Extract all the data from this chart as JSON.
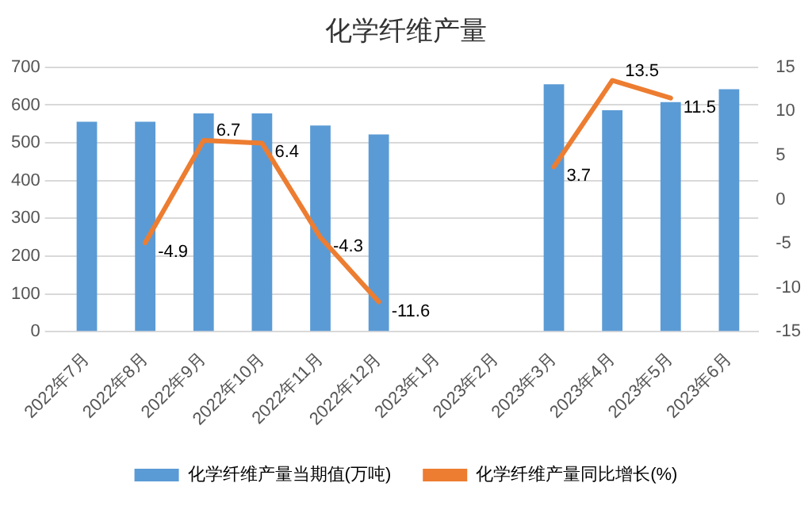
{
  "chart_data": {
    "type": "bar",
    "title": "化学纤维产量",
    "categories": [
      "2022年7月",
      "2022年8月",
      "2022年9月",
      "2022年10月",
      "2022年11月",
      "2022年12月",
      "2023年1月",
      "2023年2月",
      "2023年3月",
      "2023年4月",
      "2023年5月",
      "2023年6月"
    ],
    "series": [
      {
        "name": "化学纤维产量当期值(万吨)",
        "color": "#5b9bd5",
        "values": [
          556,
          556,
          578,
          578,
          546,
          522,
          null,
          null,
          655,
          586,
          608,
          642
        ]
      },
      {
        "name": "化学纤维产量同比增长(%)",
        "type": "line",
        "axis": "y2",
        "color": "#ed7d31",
        "values": [
          null,
          -4.9,
          6.7,
          6.4,
          -4.3,
          -11.6,
          null,
          null,
          3.7,
          13.5,
          11.5,
          null
        ],
        "value_labels": [
          null,
          "-4.9",
          "6.7",
          "6.4",
          "-4.3",
          "-11.6",
          null,
          null,
          "3.7",
          "13.5",
          "11.5",
          null
        ]
      }
    ],
    "ylim": [
      0,
      700
    ],
    "yticks": [
      0,
      100,
      200,
      300,
      400,
      500,
      600,
      700
    ],
    "y2lim": [
      -15,
      15
    ],
    "y2ticks": [
      -15,
      -10,
      -5,
      0,
      5,
      10,
      15
    ],
    "grid": "y",
    "legend": "bottom",
    "marker": "none"
  }
}
